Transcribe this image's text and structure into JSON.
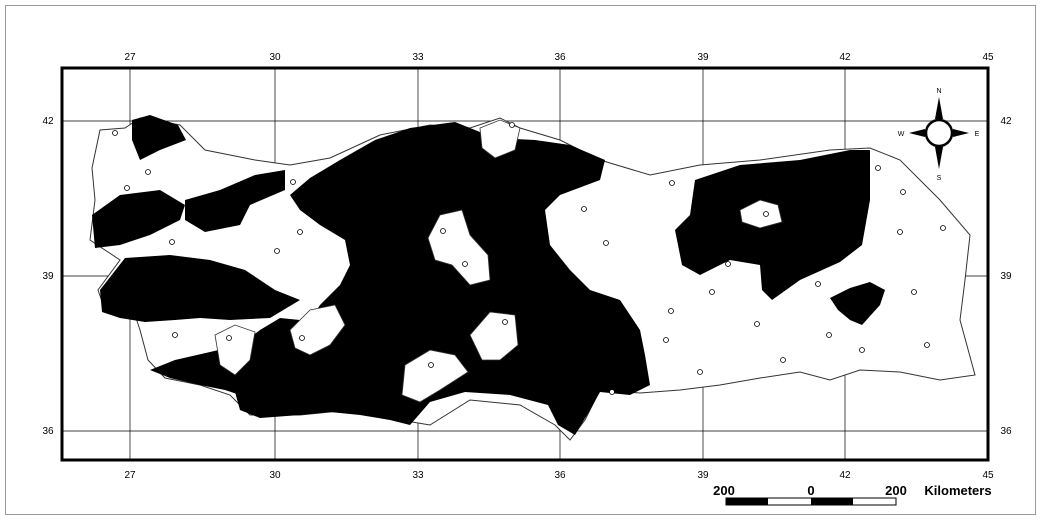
{
  "map": {
    "longitude_labels": [
      "27",
      "30",
      "33",
      "36",
      "39",
      "42",
      "45"
    ],
    "latitude_labels": [
      "42",
      "39",
      "36"
    ],
    "compass": {
      "n": "N",
      "s": "S",
      "e": "E",
      "w": "W"
    },
    "scale_bar": {
      "left": "200",
      "mid": "0",
      "right": "200",
      "unit": "Kilometers"
    },
    "colors": {
      "frame": "#000000",
      "province_fill": "#000000",
      "province_outline": "#333333",
      "graticule": "#000000",
      "background": "#ffffff"
    }
  }
}
